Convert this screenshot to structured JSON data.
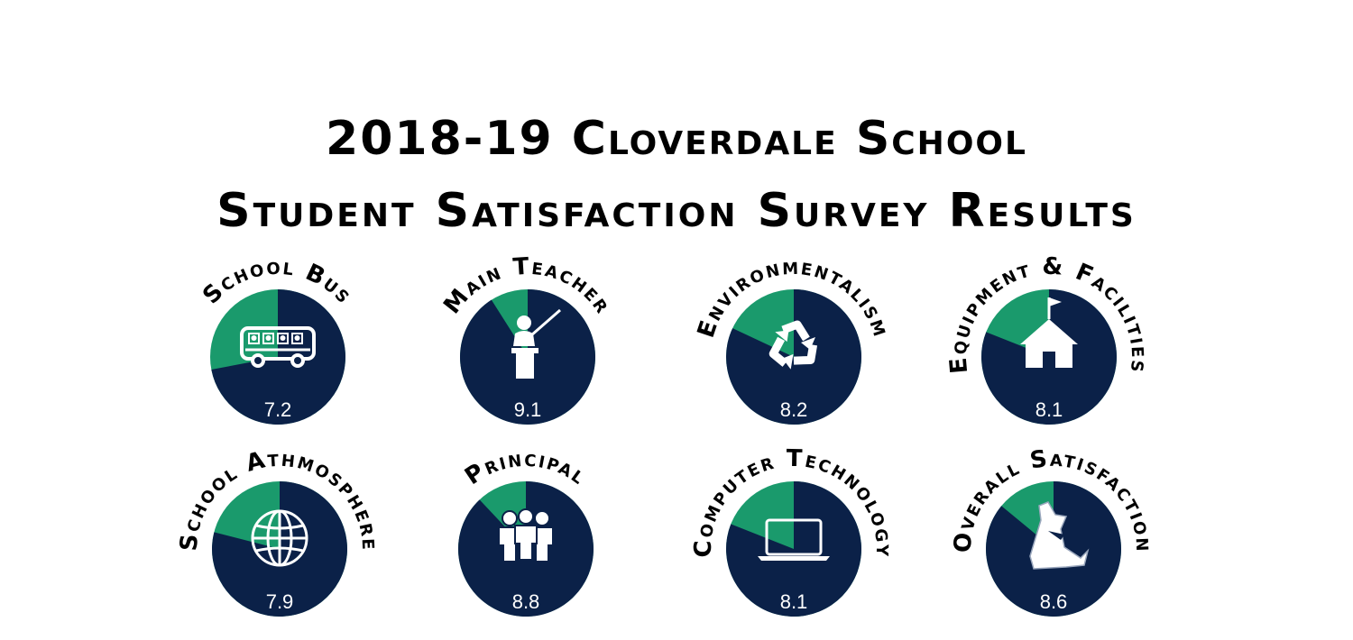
{
  "title": {
    "line1": "2018-19 Cloverdale School",
    "line2": "Student Satisfaction Survey Results"
  },
  "colors": {
    "dark": "#0b2148",
    "green": "#1a9a6c",
    "icon": "#ffffff"
  },
  "chart_data": {
    "type": "pie",
    "scale_max": 10,
    "items": [
      {
        "label": "School Bus",
        "value": 7.2,
        "icon": "bus-icon"
      },
      {
        "label": "Main Teacher",
        "value": 9.1,
        "icon": "teacher-icon"
      },
      {
        "label": "Environmentalism",
        "value": 8.2,
        "icon": "recycle-icon"
      },
      {
        "label": "Equipment & Facilities",
        "value": 8.1,
        "icon": "school-house-icon"
      },
      {
        "label": "School Athmosphere",
        "value": 7.9,
        "icon": "globe-icon"
      },
      {
        "label": "Principal",
        "value": 8.8,
        "icon": "people-icon"
      },
      {
        "label": "Computer Technology",
        "value": 8.1,
        "icon": "laptop-icon"
      },
      {
        "label": "Overall Satisfaction",
        "value": 8.6,
        "icon": "mascot-icon"
      }
    ]
  }
}
